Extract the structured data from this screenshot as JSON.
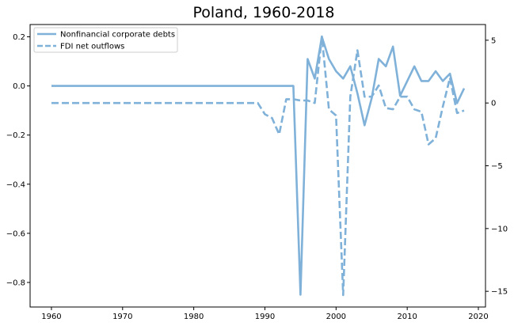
{
  "chart_data": {
    "type": "line",
    "title": "Poland, 1960-2018",
    "xlabel": "",
    "ylabel_left": "",
    "ylabel_right": "",
    "xlim": [
      1957,
      2021
    ],
    "ylim_left": [
      -0.9,
      0.25
    ],
    "ylim_right": [
      -16.25,
      6.25
    ],
    "x_ticks": [
      1960,
      1970,
      1980,
      1990,
      2000,
      2010,
      2020
    ],
    "y_left_ticks": [
      0.2,
      0.0,
      -0.2,
      -0.4,
      -0.6,
      -0.8
    ],
    "y_left_tick_labels": [
      "0.2",
      "0.0",
      "−0.2",
      "−0.4",
      "−0.6",
      "−0.8"
    ],
    "y_right_ticks": [
      5,
      0,
      -5,
      -10,
      -15
    ],
    "y_right_tick_labels": [
      "5",
      "0",
      "−5",
      "−10",
      "−15"
    ],
    "grid": false,
    "legend_position": "top-left",
    "color": "#7fb1d9",
    "series": [
      {
        "name": "Nonfinancial corporate debts",
        "axis": "left",
        "style": "solid",
        "x": [
          1960,
          1994,
          1995,
          1996,
          1997,
          1998,
          1999,
          2000,
          2001,
          2002,
          2003,
          2004,
          2005,
          2006,
          2007,
          2008,
          2009,
          2010,
          2011,
          2012,
          2013,
          2014,
          2015,
          2016,
          2017,
          2018
        ],
        "values": [
          0.0,
          0.0,
          -0.85,
          0.11,
          0.03,
          0.2,
          0.11,
          0.06,
          0.03,
          0.08,
          -0.03,
          -0.16,
          -0.05,
          0.11,
          0.08,
          0.16,
          -0.04,
          0.02,
          0.08,
          0.02,
          0.02,
          0.06,
          0.02,
          0.05,
          -0.07,
          -0.01
        ]
      },
      {
        "name": "FDI net outflows",
        "axis": "right",
        "style": "dashed",
        "x": [
          1960,
          1989,
          1990,
          1991,
          1992,
          1993,
          1994,
          1995,
          1996,
          1997,
          1998,
          1999,
          2000,
          2001,
          2002,
          2003,
          2004,
          2005,
          2006,
          2007,
          2008,
          2009,
          2010,
          2011,
          2012,
          2013,
          2014,
          2015,
          2016,
          2017,
          2018
        ],
        "values": [
          0.0,
          0.0,
          -0.9,
          -1.2,
          -2.5,
          0.3,
          0.3,
          0.2,
          0.2,
          0.0,
          5.3,
          -0.5,
          -1.0,
          -15.3,
          0.5,
          4.2,
          0.5,
          0.5,
          1.4,
          -0.4,
          -0.5,
          0.5,
          0.5,
          -0.5,
          -0.7,
          -3.3,
          -2.8,
          -0.3,
          2.0,
          -0.8,
          -0.6
        ]
      }
    ]
  }
}
